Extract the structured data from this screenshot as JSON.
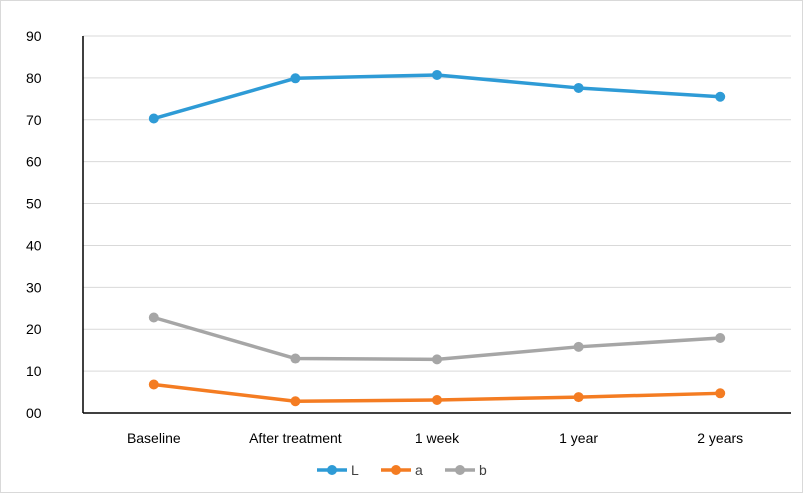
{
  "chart_data": {
    "type": "line",
    "title": "",
    "xlabel": "",
    "ylabel": "",
    "categories": [
      "Baseline",
      "After treatment",
      "1 week",
      "1 year",
      "2 years"
    ],
    "ylim": [
      0,
      90
    ],
    "yticks": [
      0,
      10,
      20,
      30,
      40,
      50,
      60,
      70,
      80,
      90
    ],
    "ytick_labels": [
      "00",
      "10",
      "20",
      "30",
      "40",
      "50",
      "60",
      "70",
      "80",
      "90"
    ],
    "grid": true,
    "legend_position": "bottom",
    "series": [
      {
        "name": "L",
        "color": "#2e9bd6",
        "values": [
          70.3,
          79.9,
          80.7,
          77.6,
          75.5
        ]
      },
      {
        "name": "a",
        "color": "#f47c22",
        "values": [
          6.8,
          2.8,
          3.1,
          3.8,
          4.7
        ]
      },
      {
        "name": "b",
        "color": "#a6a6a6",
        "values": [
          22.8,
          13.0,
          12.8,
          15.8,
          17.9
        ]
      }
    ]
  }
}
